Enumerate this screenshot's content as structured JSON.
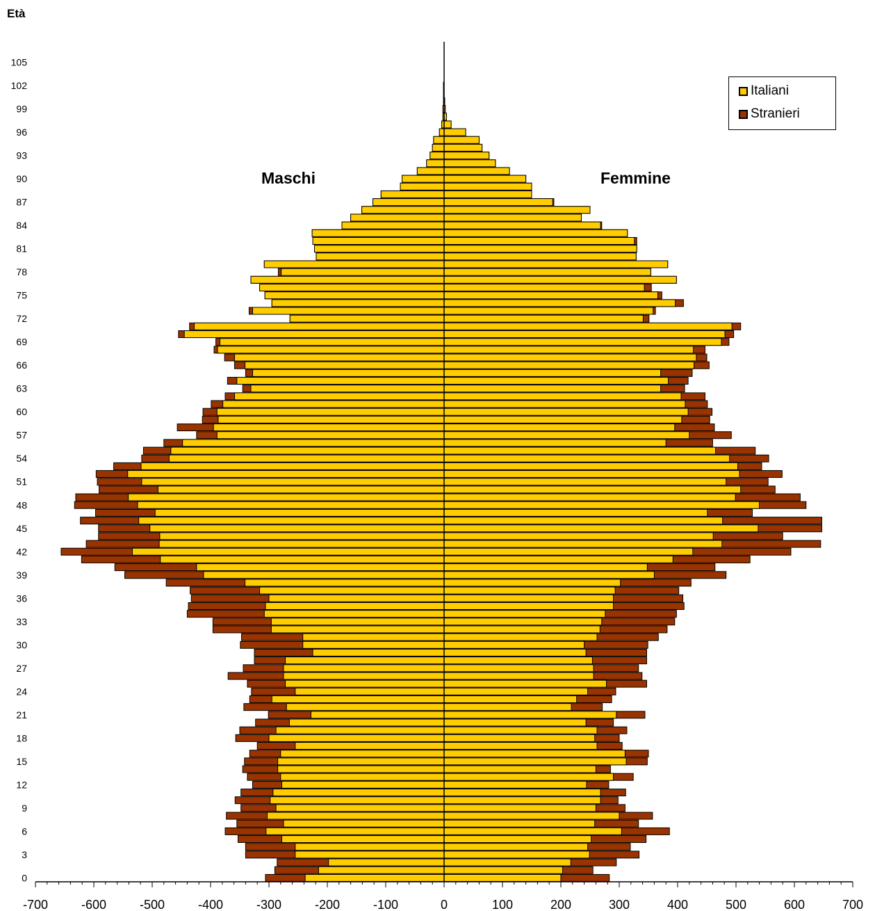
{
  "chart_data": {
    "type": "bar",
    "orientation": "horizontal",
    "subtype": "population-pyramid",
    "ylabel": "Età",
    "left_label": "Maschi",
    "right_label": "Femmine",
    "xlim": [
      -700,
      700
    ],
    "x_ticks": [
      -700,
      -600,
      -500,
      -400,
      -300,
      -200,
      -100,
      0,
      100,
      200,
      300,
      400,
      500,
      600,
      700
    ],
    "y_ticks": [
      0,
      3,
      6,
      9,
      12,
      15,
      18,
      21,
      24,
      27,
      30,
      33,
      36,
      39,
      42,
      45,
      48,
      51,
      54,
      57,
      60,
      63,
      66,
      69,
      72,
      75,
      78,
      81,
      84,
      87,
      90,
      93,
      96,
      99,
      102,
      105
    ],
    "legend": {
      "position": "top-right",
      "entries": [
        {
          "name": "Italiani",
          "color": "#ffcc00"
        },
        {
          "name": "Stranieri",
          "color": "#993300"
        }
      ]
    },
    "ages": [
      0,
      1,
      2,
      3,
      4,
      5,
      6,
      7,
      8,
      9,
      10,
      11,
      12,
      13,
      14,
      15,
      16,
      17,
      18,
      19,
      20,
      21,
      22,
      23,
      24,
      25,
      26,
      27,
      28,
      29,
      30,
      31,
      32,
      33,
      34,
      35,
      36,
      37,
      38,
      39,
      40,
      41,
      42,
      43,
      44,
      45,
      46,
      47,
      48,
      49,
      50,
      51,
      52,
      53,
      54,
      55,
      56,
      57,
      58,
      59,
      60,
      61,
      62,
      63,
      64,
      65,
      66,
      67,
      68,
      69,
      70,
      71,
      72,
      73,
      74,
      75,
      76,
      77,
      78,
      79,
      80,
      81,
      82,
      83,
      84,
      85,
      86,
      87,
      88,
      89,
      90,
      91,
      92,
      93,
      94,
      95,
      96,
      97,
      98,
      99,
      100,
      101,
      102,
      103,
      104
    ],
    "series": [
      {
        "name": "Italiani",
        "side": "Maschi",
        "values": [
          238,
          215,
          198,
          255,
          255,
          278,
          305,
          275,
          303,
          288,
          298,
          293,
          278,
          280,
          285,
          285,
          280,
          255,
          300,
          288,
          265,
          228,
          270,
          295,
          255,
          272,
          275,
          275,
          272,
          225,
          242,
          242,
          296,
          296,
          308,
          306,
          300,
          316,
          341,
          412,
          424,
          486,
          534,
          488,
          487,
          504,
          523,
          495,
          525,
          541,
          490,
          518,
          542,
          519,
          471,
          468,
          448,
          389,
          395,
          387,
          389,
          379,
          359,
          331,
          355,
          328,
          341,
          359,
          388,
          384,
          445,
          428,
          264,
          328,
          295,
          307,
          316,
          331,
          279,
          308,
          219,
          222,
          225,
          226,
          175,
          160,
          141,
          122,
          108,
          75,
          72,
          46,
          30,
          24,
          20,
          18,
          8,
          4,
          2,
          2,
          1,
          1,
          1,
          0,
          0
        ]
      },
      {
        "name": "Stranieri",
        "side": "Maschi",
        "values": [
          68,
          75,
          88,
          85,
          85,
          75,
          70,
          80,
          70,
          60,
          60,
          55,
          50,
          57,
          60,
          57,
          53,
          65,
          57,
          62,
          58,
          73,
          73,
          38,
          75,
          65,
          95,
          69,
          53,
          100,
          107,
          105,
          100,
          100,
          132,
          132,
          133,
          119,
          135,
          135,
          140,
          135,
          122,
          125,
          105,
          88,
          100,
          102,
          108,
          90,
          101,
          76,
          54,
          47,
          47,
          47,
          32,
          35,
          62,
          27,
          24,
          20,
          16,
          14,
          16,
          12,
          18,
          17,
          6,
          7,
          10,
          8,
          0,
          6,
          0,
          0,
          0,
          0,
          5,
          0,
          0,
          0,
          0,
          0,
          0,
          0,
          0,
          0,
          0,
          0,
          0,
          0,
          0,
          0,
          0,
          0,
          0,
          0,
          0,
          0,
          0,
          0,
          0,
          0,
          0
        ]
      },
      {
        "name": "Italiani",
        "side": "Femmine",
        "values": [
          200,
          203,
          217,
          249,
          246,
          252,
          304,
          258,
          300,
          260,
          268,
          268,
          244,
          290,
          260,
          312,
          310,
          262,
          258,
          262,
          243,
          295,
          218,
          227,
          246,
          278,
          256,
          256,
          254,
          243,
          240,
          262,
          267,
          270,
          276,
          290,
          290,
          293,
          302,
          360,
          348,
          392,
          426,
          476,
          461,
          538,
          477,
          451,
          540,
          499,
          508,
          483,
          506,
          503,
          489,
          465,
          380,
          420,
          395,
          407,
          418,
          413,
          406,
          371,
          384,
          371,
          428,
          432,
          427,
          475,
          481,
          493,
          341,
          358,
          396,
          366,
          343,
          398,
          354,
          383,
          329,
          330,
          326,
          314,
          268,
          235,
          250,
          186,
          150,
          150,
          140,
          112,
          88,
          77,
          65,
          60,
          37,
          12,
          4,
          2,
          1,
          0,
          0,
          0,
          0
        ]
      },
      {
        "name": "Stranieri",
        "side": "Femmine",
        "values": [
          83,
          52,
          78,
          85,
          73,
          94,
          82,
          75,
          57,
          50,
          30,
          43,
          38,
          34,
          25,
          36,
          40,
          43,
          42,
          51,
          47,
          49,
          53,
          60,
          48,
          69,
          83,
          77,
          93,
          104,
          109,
          105,
          115,
          125,
          122,
          121,
          119,
          109,
          121,
          123,
          116,
          132,
          168,
          169,
          119,
          109,
          170,
          77,
          80,
          111,
          59,
          72,
          73,
          41,
          67,
          68,
          80,
          72,
          68,
          48,
          41,
          38,
          41,
          41,
          34,
          54,
          26,
          18,
          20,
          13,
          15,
          15,
          10,
          4,
          14,
          7,
          12,
          0,
          0,
          0,
          0,
          0,
          4,
          0,
          2,
          0,
          0,
          2,
          0,
          0,
          0,
          0,
          0,
          0,
          0,
          0,
          0,
          0,
          0,
          0,
          0,
          0,
          0,
          0,
          0
        ]
      }
    ]
  }
}
